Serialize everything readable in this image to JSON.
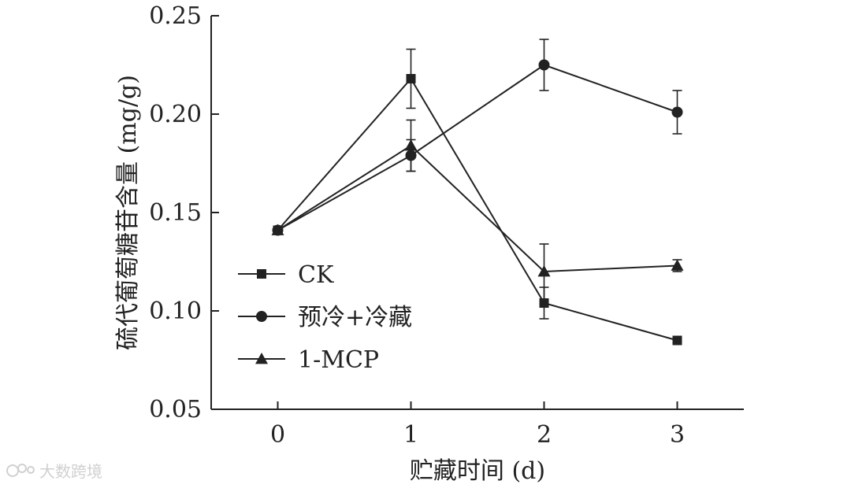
{
  "chart_data": {
    "type": "line",
    "xlabel": "贮藏时间 (d)",
    "ylabel": "硫代葡萄糖苷含量 (mg/g)",
    "x": [
      0,
      1,
      2,
      3
    ],
    "xticks": [
      "0",
      "1",
      "2",
      "3"
    ],
    "xlim": [
      -0.5,
      3.5
    ],
    "yticks": [
      "0.05",
      "0.10",
      "0.15",
      "0.20",
      "0.25"
    ],
    "ylim": [
      0.05,
      0.25
    ],
    "legend_position": "left",
    "series": [
      {
        "name": "CK",
        "marker": "square",
        "values": [
          0.141,
          0.218,
          0.104,
          0.085
        ],
        "errors": [
          0,
          0.015,
          0.008,
          0
        ]
      },
      {
        "name": "预冷+冷藏",
        "marker": "circle",
        "values": [
          0.141,
          0.179,
          0.225,
          0.201
        ],
        "errors": [
          0,
          0.008,
          0.013,
          0.011
        ]
      },
      {
        "name": "1-MCP",
        "marker": "triangle",
        "values": [
          0.141,
          0.184,
          0.12,
          0.123
        ],
        "errors": [
          0,
          0.013,
          0.014,
          0.003
        ]
      }
    ]
  },
  "watermark": {
    "text": "大数跨境"
  }
}
